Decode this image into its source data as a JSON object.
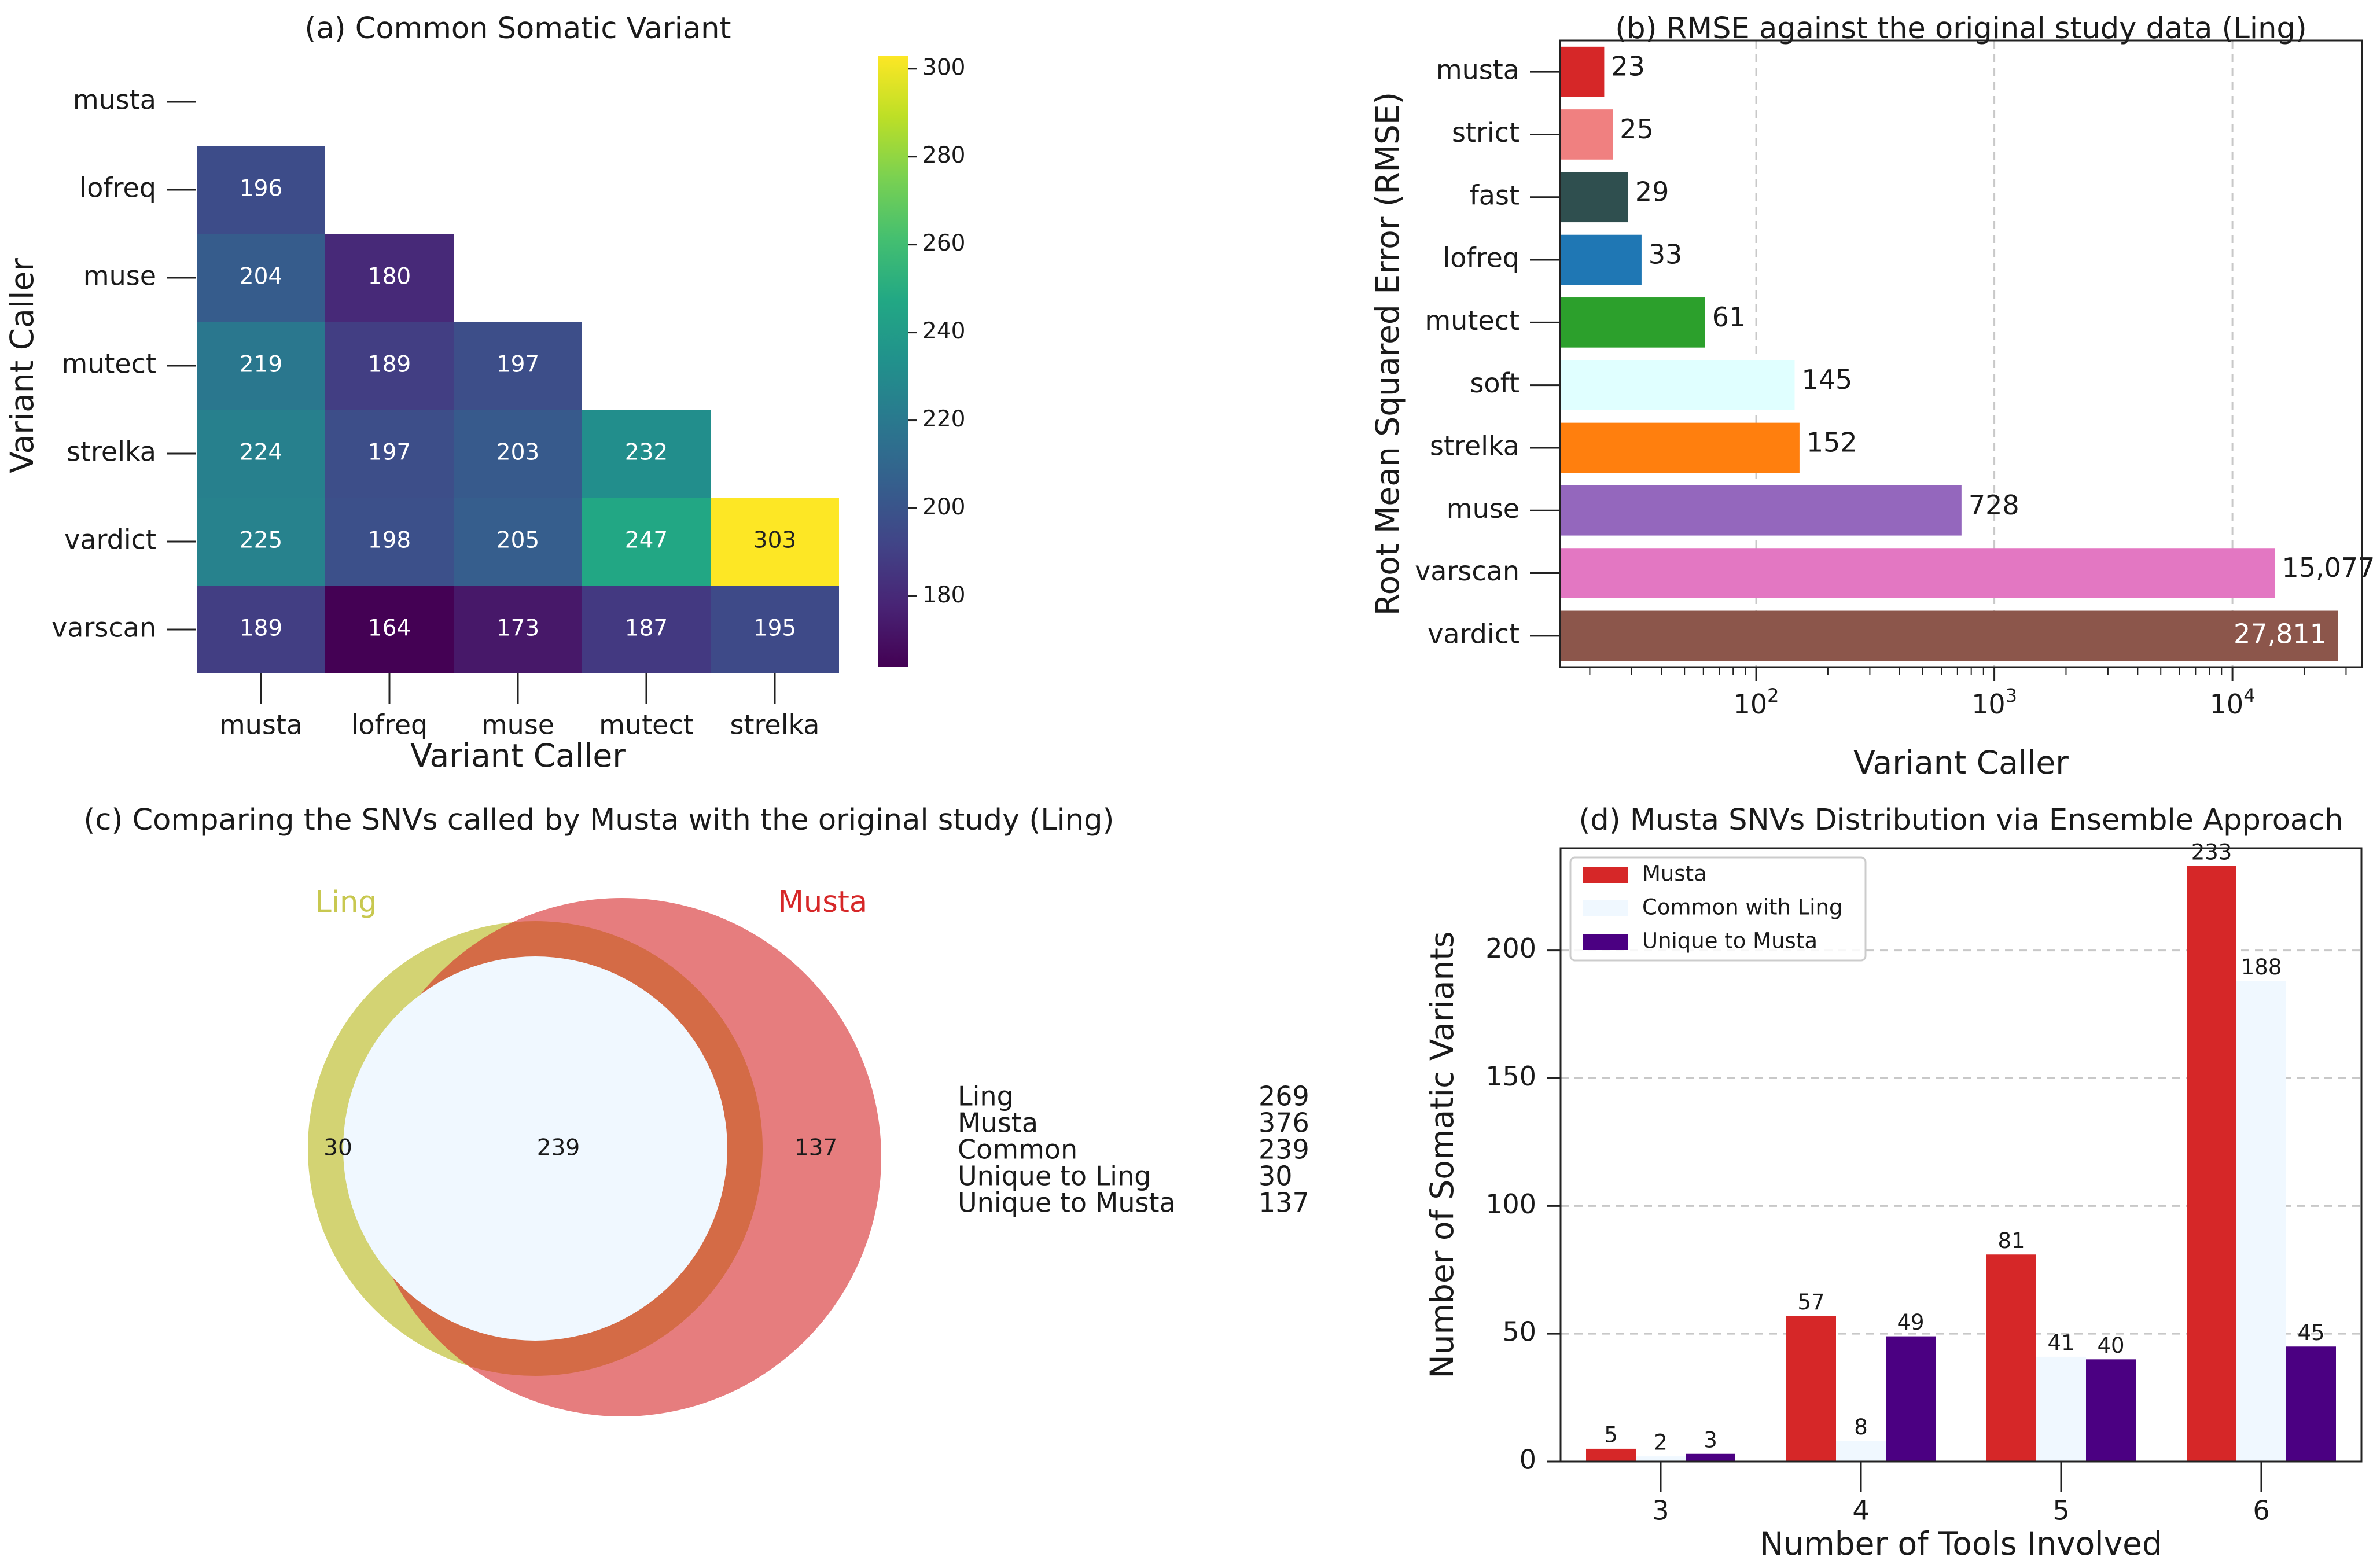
{
  "panels": {
    "a": {
      "title": "(a) Common Somatic Variant"
    },
    "b": {
      "title": "(b) RMSE against the original study data (Ling)"
    },
    "c": {
      "title": "(c) Comparing the SNVs called by Musta with the original study (Ling)"
    },
    "d": {
      "title": "(d) Musta SNVs Distribution via Ensemble Approach"
    }
  },
  "chart_data": [
    {
      "id": "a",
      "type": "heatmap",
      "title": "(a) Common Somatic Variant",
      "xlabel": "Variant Caller",
      "ylabel": "Variant Caller",
      "rows": [
        "musta",
        "lofreq",
        "muse",
        "mutect",
        "strelka",
        "vardict",
        "varscan"
      ],
      "cols": [
        "musta",
        "lofreq",
        "muse",
        "mutect",
        "strelka"
      ],
      "values": [
        [
          null,
          null,
          null,
          null,
          null
        ],
        [
          196,
          null,
          null,
          null,
          null
        ],
        [
          204,
          180,
          null,
          null,
          null
        ],
        [
          219,
          189,
          197,
          null,
          null
        ],
        [
          224,
          197,
          203,
          232,
          null
        ],
        [
          225,
          198,
          205,
          247,
          303
        ],
        [
          189,
          164,
          173,
          187,
          195
        ]
      ],
      "colormap": "viridis",
      "vmin": 164,
      "vmax": 303,
      "colorbar_ticks": [
        180,
        200,
        220,
        240,
        260,
        280,
        300
      ]
    },
    {
      "id": "b",
      "type": "bar",
      "orientation": "horizontal",
      "title": "(b) RMSE against the original study data (Ling)",
      "xlabel": "Variant Caller",
      "ylabel": "Root Mean Squared Error (RMSE)",
      "xscale": "log",
      "xlim": [
        15,
        35000
      ],
      "xticks": [
        {
          "value": 100,
          "base": "10",
          "exp": "2"
        },
        {
          "value": 1000,
          "base": "10",
          "exp": "3"
        },
        {
          "value": 10000,
          "base": "10",
          "exp": "4"
        }
      ],
      "categories": [
        "musta",
        "strict",
        "fast",
        "lofreq",
        "mutect",
        "soft",
        "strelka",
        "muse",
        "varscan",
        "vardict"
      ],
      "values": [
        23,
        25,
        29,
        33,
        61,
        145,
        152,
        728,
        15077,
        27811
      ],
      "labels": [
        "23",
        "25",
        "29",
        "33",
        "61",
        "145",
        "152",
        "728",
        "15,077",
        "27,811"
      ],
      "colors": [
        "#d62728",
        "#f08080",
        "#2f4f4f",
        "#1f77b4",
        "#2ca02c",
        "#e0ffff",
        "#ff7f0e",
        "#9467bd",
        "#e377c2",
        "#8c564b"
      ],
      "grid": "x"
    },
    {
      "id": "c",
      "type": "venn",
      "title": "(c) Comparing the SNVs called by Musta with the original study (Ling)",
      "sets": [
        {
          "name": "Ling",
          "color": "#c8c850"
        },
        {
          "name": "Musta",
          "color": "#d62728"
        }
      ],
      "regions": {
        "ling_only": "30",
        "both": "239",
        "musta_only": "137"
      },
      "intersection_color": "#f0f8ff",
      "summary": [
        {
          "label": "Ling",
          "value": "269"
        },
        {
          "label": "Musta",
          "value": "376"
        },
        {
          "label": "Common",
          "value": "239"
        },
        {
          "label": "Unique to Ling",
          "value": "30"
        },
        {
          "label": "Unique to Musta",
          "value": "137"
        }
      ]
    },
    {
      "id": "d",
      "type": "bar",
      "title": "(d) Musta SNVs Distribution via Ensemble Approach",
      "xlabel": "Number of Tools Involved",
      "ylabel": "Number of Somatic Variants",
      "categories": [
        "3",
        "4",
        "5",
        "6"
      ],
      "ylim": [
        0,
        240
      ],
      "yticks": [
        0,
        50,
        100,
        150,
        200
      ],
      "grid": "y",
      "legend": "top-left",
      "series": [
        {
          "name": "Musta",
          "color": "#d62728",
          "values": [
            5,
            57,
            81,
            233
          ]
        },
        {
          "name": "Common with Ling",
          "color": "#f0f8ff",
          "values": [
            2,
            8,
            41,
            188
          ]
        },
        {
          "name": "Unique to Musta",
          "color": "#4b0082",
          "values": [
            3,
            49,
            40,
            45
          ]
        }
      ]
    }
  ]
}
